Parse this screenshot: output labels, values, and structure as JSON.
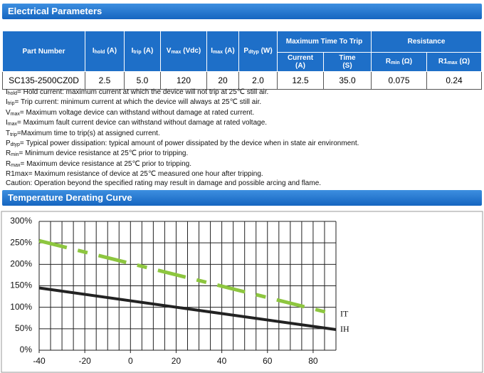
{
  "sections": [
    {
      "title": "Electrical Parameters"
    },
    {
      "title": "Temperature Derating Curve"
    }
  ],
  "table": {
    "header_top": [
      {
        "main": "Part Number"
      },
      {
        "main": "I",
        "sub": "hold",
        "unit": "(A)"
      },
      {
        "main": "I",
        "sub": "trip",
        "unit": "(A)"
      },
      {
        "main": "V",
        "sub": "max",
        "unit": "(Vdc)"
      },
      {
        "main": "I",
        "sub": "max",
        "unit": "(A)"
      },
      {
        "main": "P",
        "sub": "dtyp",
        "unit": "(W)"
      },
      {
        "main": "Maximum Time To Trip"
      },
      {
        "main": "Resistance"
      }
    ],
    "header_sub": [
      {
        "main": "Current",
        "unit": "(A)"
      },
      {
        "main": "Time",
        "unit": "(S)"
      },
      {
        "main": "R",
        "sub": "min",
        "unit": "(Ω)"
      },
      {
        "main": "R1",
        "sub": "max",
        "unit": "(Ω)"
      }
    ],
    "rows": [
      [
        "SC135-2500CZ0D",
        "2.5",
        "5.0",
        "120",
        "20",
        "2.0",
        "12.5",
        "35.0",
        "0.075",
        "0.24"
      ]
    ]
  },
  "notes": [
    {
      "sym": "I",
      "sub": "hold",
      "text": "= Hold current: maximum current at which the device will not trip at 25℃  still air."
    },
    {
      "sym": "I",
      "sub": "trip",
      "text": "= Trip current: minimum current at which the device will always at 25℃  still air."
    },
    {
      "sym": "V",
      "sub": "max",
      "text": "= Maximum voltage device can withstand without damage at rated current."
    },
    {
      "sym": "I",
      "sub": "max",
      "text": "= Maximum fault current device can withstand without damage at rated voltage."
    },
    {
      "sym": "T",
      "sub": "trip",
      "text": "=Maximum time to trip(s) at assigned current."
    },
    {
      "sym": "P",
      "sub": "dtyp",
      "text": "= Typical power dissipation: typical amount of power dissipated by the device when in state air environment."
    },
    {
      "sym": "R",
      "sub": "min",
      "text": "= Minimum device resistance at 25℃  prior to tripping."
    },
    {
      "sym": "R",
      "sub": "max",
      "text": "= Maximum device resistance at 25℃  prior to tripping."
    },
    {
      "sym": "R1max",
      "text": "= Maximum resistance of device at 25℃  measured one hour after tripping."
    },
    {
      "text": "Caution: Operation beyond the specified rating may result in damage and possible arcing and flame."
    }
  ],
  "chart_data": {
    "type": "line",
    "x": [
      -40,
      90
    ],
    "series": [
      {
        "name": "IT",
        "color": "#8dc63f",
        "dash": true,
        "values": [
          255,
          83
        ]
      },
      {
        "name": "IH",
        "color": "#222222",
        "dash": false,
        "values": [
          145,
          48
        ]
      }
    ],
    "xlim": [
      -40,
      90
    ],
    "ylim": [
      0,
      300
    ],
    "xticks": [
      -40,
      -20,
      0,
      20,
      40,
      60,
      80
    ],
    "xgrid": [
      -35,
      -30,
      -25,
      -20,
      -15,
      -10,
      -5,
      0,
      5,
      10,
      15,
      20,
      25,
      30,
      35,
      40,
      45,
      50,
      55,
      60,
      65,
      70,
      75,
      80,
      85,
      90
    ],
    "yticks": [
      {
        "value": 0,
        "label": "0%"
      },
      {
        "value": 50,
        "label": "50%"
      },
      {
        "value": 100,
        "label": "100%"
      },
      {
        "value": 150,
        "label": "150%"
      },
      {
        "value": 200,
        "label": "200%"
      },
      {
        "value": 250,
        "label": "250%"
      },
      {
        "value": 300,
        "label": "300%"
      }
    ],
    "grid": true
  }
}
